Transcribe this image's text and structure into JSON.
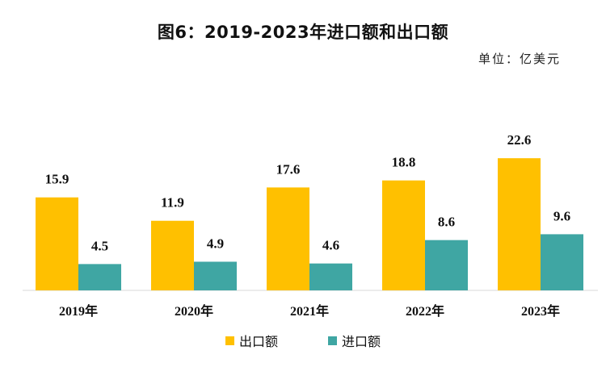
{
  "chart_data": {
    "type": "bar",
    "title": "图6：2019-2023年进口额和出口额",
    "unit": "单位：亿美元",
    "categories": [
      "2019年",
      "2020年",
      "2021年",
      "2022年",
      "2023年"
    ],
    "series": [
      {
        "name": "出口额",
        "color": "#FFC000",
        "values": [
          15.9,
          11.9,
          17.6,
          18.8,
          22.6
        ]
      },
      {
        "name": "进口额",
        "color": "#3FA6A3",
        "values": [
          4.5,
          4.9,
          4.6,
          8.6,
          9.6
        ]
      }
    ],
    "ylim": [
      0,
      25
    ],
    "grid": false,
    "legend": "bottom-center",
    "xlabel": "",
    "ylabel": ""
  }
}
